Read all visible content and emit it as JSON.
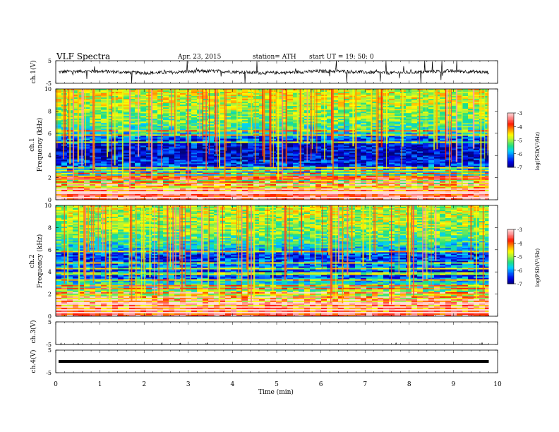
{
  "header": {
    "title": "VLF  Spectra",
    "date": "Apr. 23, 2015",
    "station": "station= ATH",
    "start_time": "start  UT  =    19: 50: 0"
  },
  "axes": {
    "ch1_label": "ch.1(V)",
    "ch3_label": "ch.3(V)",
    "ch4_label": "ch.4(V)",
    "spec1_label": "ch.1",
    "spec2_label": "ch.2",
    "freq_label": "Frequency  (kHz)",
    "x_label": "Time  (min)",
    "colorbar_label": "log(PSD(V²/Hz)"
  },
  "colors": {
    "colormap": [
      "#00007a",
      "#0000e0",
      "#0060ff",
      "#00d0ff",
      "#20e080",
      "#a0f040",
      "#ffff00",
      "#ff9000",
      "#ff1800",
      "#ff8080",
      "#ffd8d8"
    ],
    "trace": "#000000"
  },
  "chart_data": [
    {
      "type": "line",
      "panel": "ch1-waveform",
      "ylabel": "ch.1(V)",
      "ylim": [
        -5,
        5
      ],
      "yticks": [
        "5",
        "-5"
      ],
      "xlim": [
        0,
        10
      ],
      "signal": {
        "baseline_v": 0,
        "noise_amplitude_v": 1.5,
        "spike_amplitude_v": 6,
        "end_min": 9.8
      }
    },
    {
      "type": "heatmap",
      "panel": "ch1-spectrogram",
      "title": "ch.1",
      "ylabel": "Frequency  (kHz)",
      "xlabel": "Time  (min)",
      "xlim": [
        0,
        10
      ],
      "ylim": [
        0,
        10
      ],
      "yticks": [
        "0",
        "2",
        "4",
        "6",
        "8",
        "10"
      ],
      "colorbar": {
        "label": "log(PSD(V²/Hz)",
        "range": [
          -7,
          -3
        ],
        "ticks": [
          "-3",
          "-4",
          "-5",
          "-6",
          "-7"
        ]
      },
      "psd_profile_khz": [
        [
          0.0,
          -3.4
        ],
        [
          0.5,
          -3.8
        ],
        [
          1.0,
          -4.4
        ],
        [
          2.0,
          -5.2
        ],
        [
          2.5,
          -5.8
        ],
        [
          3.0,
          -6.3
        ],
        [
          4.0,
          -6.7
        ],
        [
          5.0,
          -6.6
        ],
        [
          5.8,
          -6.0
        ],
        [
          6.0,
          -5.6
        ],
        [
          6.5,
          -5.4
        ],
        [
          7.0,
          -5.2
        ],
        [
          8.0,
          -5.0
        ],
        [
          9.0,
          -4.8
        ],
        [
          10.0,
          -4.7
        ]
      ],
      "tones_khz": [
        0.25,
        0.55,
        0.75,
        1.0,
        1.35,
        1.6,
        1.85,
        2.05,
        2.35,
        2.6,
        2.85,
        5.2,
        5.85,
        6.2
      ],
      "spike_count": 95
    },
    {
      "type": "heatmap",
      "panel": "ch2-spectrogram",
      "title": "ch.2",
      "ylabel": "Frequency  (kHz)",
      "xlabel": "Time  (min)",
      "xlim": [
        0,
        10
      ],
      "ylim": [
        0,
        10
      ],
      "yticks": [
        "0",
        "2",
        "4",
        "6",
        "8",
        "10"
      ],
      "colorbar": {
        "label": "log(PSD(V²/Hz)",
        "range": [
          -7,
          -3
        ],
        "ticks": [
          "-3",
          "-4",
          "-5",
          "-6",
          "-7"
        ]
      },
      "psd_profile_khz": [
        [
          0.0,
          -3.5
        ],
        [
          0.5,
          -4.0
        ],
        [
          1.0,
          -4.3
        ],
        [
          2.0,
          -4.8
        ],
        [
          2.5,
          -5.2
        ],
        [
          3.0,
          -5.6
        ],
        [
          3.5,
          -6.2
        ],
        [
          4.0,
          -6.5
        ],
        [
          4.5,
          -6.0
        ],
        [
          5.0,
          -6.3
        ],
        [
          5.5,
          -6.4
        ],
        [
          6.0,
          -5.8
        ],
        [
          7.0,
          -5.3
        ],
        [
          8.0,
          -5.0
        ],
        [
          10.0,
          -4.8
        ]
      ],
      "tones_khz": [
        0.3,
        0.55,
        0.85,
        1.15,
        1.45,
        1.75,
        2.1,
        2.45,
        2.8,
        3.25,
        3.85,
        4.25,
        4.85,
        5.85
      ],
      "spike_count": 90
    },
    {
      "type": "line",
      "panel": "ch3-waveform",
      "ylabel": "ch.3(V)",
      "ylim": [
        -5,
        5
      ],
      "yticks": [
        "5",
        "-5"
      ],
      "xlim": [
        0,
        10
      ],
      "signal": {
        "baseline_v": -5,
        "noise_amplitude_v": 0.1,
        "spike_amplitude_v": 0.8,
        "end_min": 9.8
      }
    },
    {
      "type": "line",
      "panel": "ch4-waveform",
      "ylabel": "ch.4(V)",
      "ylim": [
        -5,
        5
      ],
      "yticks": [
        "5",
        "-5"
      ],
      "xlim": [
        0,
        10
      ],
      "xlabel": "Time  (min)",
      "xticks": [
        "0",
        "1",
        "2",
        "3",
        "4",
        "5",
        "6",
        "7",
        "8",
        "9",
        "10"
      ],
      "signal": {
        "baseline_v": 0,
        "noise_amplitude_v": 0.3,
        "spike_amplitude_v": 0.3,
        "end_min": 9.8
      }
    }
  ]
}
